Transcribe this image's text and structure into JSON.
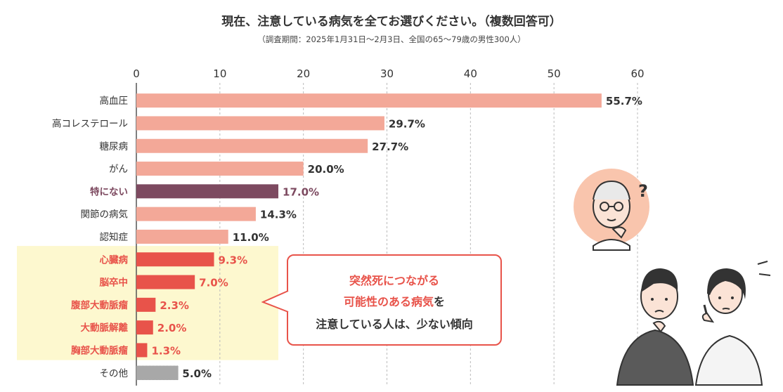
{
  "title": "現在、注意している病気を全てお選びください。（複数回答可）",
  "subtitle": "（調査期間：2025年1月31日〜2月3日、全国の65〜79歳の男性300人）",
  "chart_data": {
    "type": "bar",
    "orientation": "horizontal",
    "title": "現在、注意している病気を全てお選びください。（複数回答可）",
    "subtitle": "（調査期間：2025年1月31日〜2月3日、全国の65〜79歳の男性300人）",
    "xlabel": "",
    "ylabel": "",
    "xlim": [
      0,
      60
    ],
    "x_ticks": [
      0,
      10,
      20,
      30,
      40,
      50,
      60
    ],
    "grid": "vertical-dashed",
    "categories": [
      "高血圧",
      "高コレステロール",
      "糖尿病",
      "がん",
      "特にない",
      "関節の病気",
      "認知症",
      "心臓病",
      "脳卒中",
      "腹部大動脈瘤",
      "大動脈解離",
      "胸部大動脈瘤",
      "その他"
    ],
    "values": [
      55.7,
      29.7,
      27.7,
      20.0,
      17.0,
      14.3,
      11.0,
      9.3,
      7.0,
      2.3,
      2.0,
      1.3,
      5.0
    ],
    "value_labels": [
      "55.7%",
      "29.7%",
      "27.7%",
      "20.0%",
      "17.0%",
      "14.3%",
      "11.0%",
      "9.3%",
      "7.0%",
      "2.3%",
      "2.0%",
      "1.3%",
      "5.0%"
    ],
    "groups": [
      "normal",
      "normal",
      "normal",
      "normal",
      "none",
      "normal",
      "normal",
      "sudden",
      "sudden",
      "sudden",
      "sudden",
      "sudden",
      "other"
    ],
    "colors": {
      "normal": "#f3a898",
      "none": "#7d4a60",
      "sudden": "#e8534a",
      "other": "#a8a8a8",
      "highlight_bg": "#fdf8cf"
    }
  },
  "callout": {
    "line1": "突然死につながる",
    "line2_highlight": "可能性のある病気",
    "line2_rest": "を",
    "line3": "注意している人は、少ない傾向"
  }
}
